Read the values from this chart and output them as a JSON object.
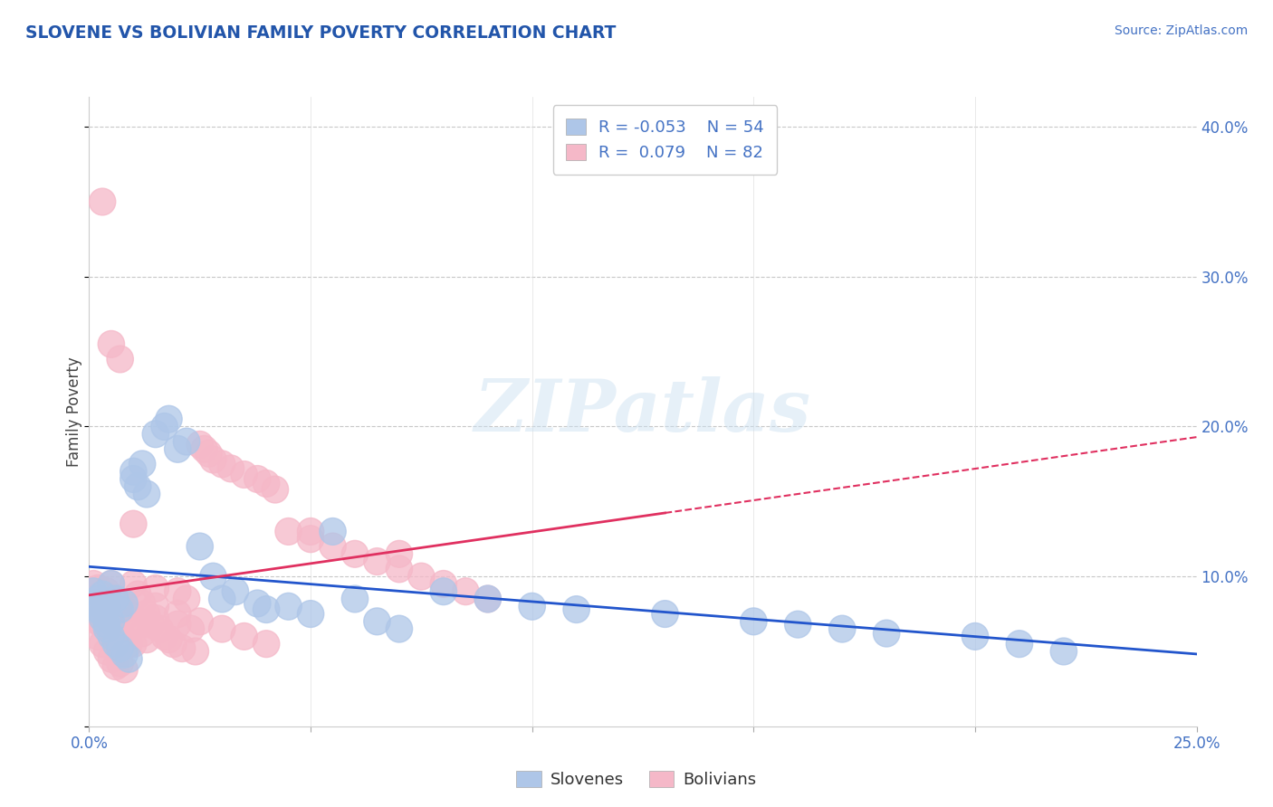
{
  "title": "SLOVENE VS BOLIVIAN FAMILY POVERTY CORRELATION CHART",
  "source": "Source: ZipAtlas.com",
  "ylabel": "Family Poverty",
  "xlim": [
    0.0,
    0.25
  ],
  "ylim": [
    0.0,
    0.42
  ],
  "yticks": [
    0.0,
    0.1,
    0.2,
    0.3,
    0.4
  ],
  "ytick_labels": [
    "",
    "10.0%",
    "20.0%",
    "30.0%",
    "40.0%"
  ],
  "xticks": [
    0.0,
    0.05,
    0.1,
    0.15,
    0.2,
    0.25
  ],
  "grid_color": "#c8c8c8",
  "background_color": "#ffffff",
  "slovene_color": "#aec6e8",
  "bolivian_color": "#f5b8c8",
  "slovene_line_color": "#2255cc",
  "bolivian_line_color": "#e03060",
  "slovene_R": -0.053,
  "slovene_N": 54,
  "bolivian_R": 0.079,
  "bolivian_N": 82,
  "legend_label1": "Slovenes",
  "legend_label2": "Bolivians",
  "watermark": "ZIPatlas",
  "title_color": "#2255aa",
  "axis_label_color": "#4472c4",
  "slovene_x": [
    0.001,
    0.002,
    0.002,
    0.002,
    0.003,
    0.003,
    0.003,
    0.004,
    0.004,
    0.004,
    0.005,
    0.005,
    0.005,
    0.006,
    0.006,
    0.007,
    0.007,
    0.008,
    0.008,
    0.009,
    0.01,
    0.01,
    0.011,
    0.012,
    0.013,
    0.015,
    0.017,
    0.018,
    0.02,
    0.022,
    0.025,
    0.028,
    0.03,
    0.033,
    0.038,
    0.04,
    0.045,
    0.05,
    0.055,
    0.06,
    0.065,
    0.07,
    0.08,
    0.09,
    0.1,
    0.11,
    0.13,
    0.15,
    0.16,
    0.17,
    0.18,
    0.2,
    0.21,
    0.22
  ],
  "slovene_y": [
    0.09,
    0.085,
    0.082,
    0.078,
    0.088,
    0.075,
    0.072,
    0.08,
    0.068,
    0.065,
    0.095,
    0.07,
    0.06,
    0.085,
    0.055,
    0.078,
    0.052,
    0.082,
    0.048,
    0.045,
    0.17,
    0.165,
    0.16,
    0.175,
    0.155,
    0.195,
    0.2,
    0.205,
    0.185,
    0.19,
    0.12,
    0.1,
    0.085,
    0.09,
    0.082,
    0.078,
    0.08,
    0.075,
    0.13,
    0.085,
    0.07,
    0.065,
    0.09,
    0.085,
    0.08,
    0.078,
    0.075,
    0.07,
    0.068,
    0.065,
    0.062,
    0.06,
    0.055,
    0.05
  ],
  "bolivian_x": [
    0.001,
    0.001,
    0.001,
    0.002,
    0.002,
    0.002,
    0.002,
    0.003,
    0.003,
    0.003,
    0.003,
    0.004,
    0.004,
    0.004,
    0.005,
    0.005,
    0.005,
    0.006,
    0.006,
    0.006,
    0.007,
    0.007,
    0.007,
    0.008,
    0.008,
    0.008,
    0.009,
    0.009,
    0.01,
    0.01,
    0.01,
    0.011,
    0.011,
    0.012,
    0.012,
    0.013,
    0.013,
    0.014,
    0.015,
    0.015,
    0.016,
    0.017,
    0.018,
    0.019,
    0.02,
    0.02,
    0.021,
    0.022,
    0.023,
    0.024,
    0.025,
    0.026,
    0.027,
    0.028,
    0.03,
    0.032,
    0.035,
    0.038,
    0.04,
    0.042,
    0.045,
    0.05,
    0.055,
    0.06,
    0.065,
    0.07,
    0.075,
    0.08,
    0.085,
    0.09,
    0.003,
    0.005,
    0.007,
    0.01,
    0.015,
    0.02,
    0.025,
    0.03,
    0.035,
    0.04,
    0.05,
    0.07
  ],
  "bolivian_y": [
    0.095,
    0.085,
    0.075,
    0.092,
    0.08,
    0.07,
    0.06,
    0.088,
    0.078,
    0.068,
    0.055,
    0.09,
    0.072,
    0.05,
    0.095,
    0.075,
    0.045,
    0.085,
    0.065,
    0.04,
    0.082,
    0.062,
    0.042,
    0.078,
    0.058,
    0.038,
    0.075,
    0.055,
    0.095,
    0.072,
    0.055,
    0.088,
    0.068,
    0.082,
    0.062,
    0.075,
    0.058,
    0.068,
    0.092,
    0.072,
    0.065,
    0.06,
    0.058,
    0.055,
    0.09,
    0.068,
    0.052,
    0.085,
    0.065,
    0.05,
    0.188,
    0.185,
    0.182,
    0.178,
    0.175,
    0.172,
    0.168,
    0.165,
    0.162,
    0.158,
    0.13,
    0.125,
    0.12,
    0.115,
    0.11,
    0.105,
    0.1,
    0.095,
    0.09,
    0.085,
    0.35,
    0.255,
    0.245,
    0.135,
    0.08,
    0.075,
    0.07,
    0.065,
    0.06,
    0.055,
    0.13,
    0.115
  ]
}
